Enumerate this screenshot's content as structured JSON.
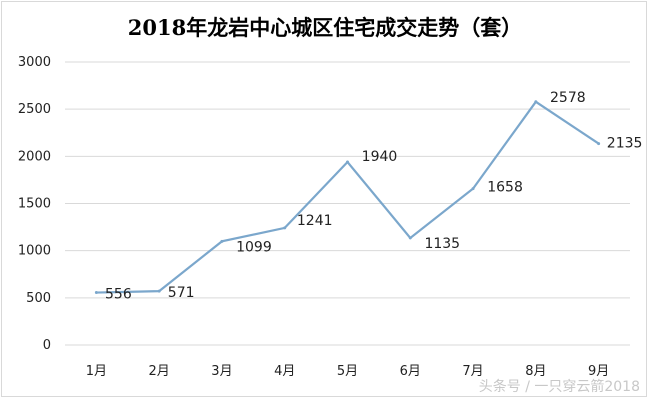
{
  "chart_data": {
    "type": "line",
    "title": "2018年龙岩中心城区住宅成交走势（套）",
    "categories": [
      "1月",
      "2月",
      "3月",
      "4月",
      "5月",
      "6月",
      "7月",
      "8月",
      "9月"
    ],
    "series": [
      {
        "values": [
          556,
          571,
          1099,
          1241,
          1940,
          1135,
          1658,
          2578,
          2135
        ]
      }
    ],
    "ylim": [
      0,
      3000
    ],
    "yticks": [
      0,
      500,
      1000,
      1500,
      2000,
      2500,
      3000
    ],
    "grid": true,
    "line_color": "#7ba7cc"
  },
  "watermark": "头条号 / 一只穿云箭2018"
}
